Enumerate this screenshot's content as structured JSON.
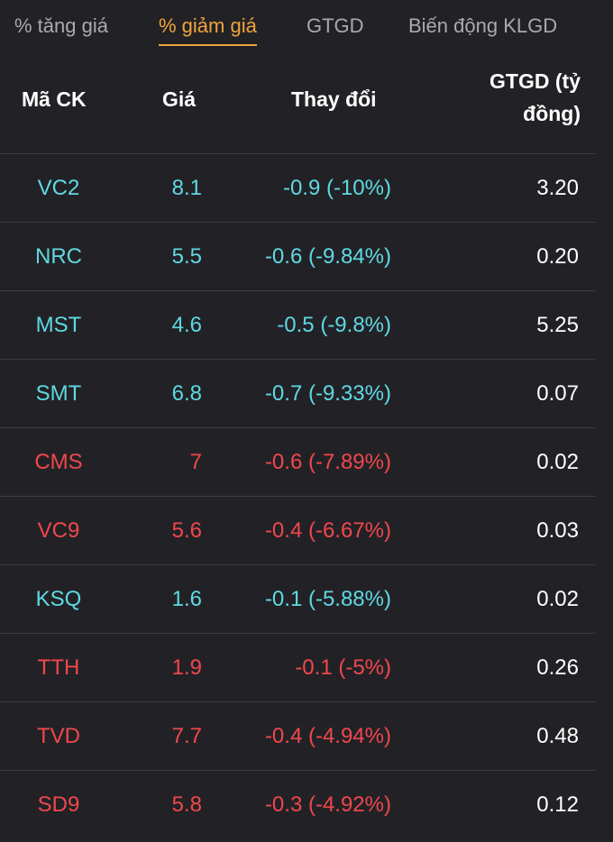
{
  "colors": {
    "floor": "#5fd9e3",
    "down": "#f0474d",
    "accent": "#f0a43a",
    "background": "#222226"
  },
  "tabs": [
    {
      "label": "% tăng giá",
      "active": false
    },
    {
      "label": "% giảm giá",
      "active": true
    },
    {
      "label": "GTGD",
      "active": false
    },
    {
      "label": "Biến động KLGD",
      "active": false
    }
  ],
  "headers": {
    "code": "Mã CK",
    "price": "Giá",
    "change": "Thay đổi",
    "value_line1": "GTGD (tỷ",
    "value_line2": "đồng)"
  },
  "rows": [
    {
      "code": "VC2",
      "price": "8.1",
      "change": "-0.9 (-10%)",
      "value": "3.20",
      "status": "floor"
    },
    {
      "code": "NRC",
      "price": "5.5",
      "change": "-0.6 (-9.84%)",
      "value": "0.20",
      "status": "floor"
    },
    {
      "code": "MST",
      "price": "4.6",
      "change": "-0.5 (-9.8%)",
      "value": "5.25",
      "status": "floor"
    },
    {
      "code": "SMT",
      "price": "6.8",
      "change": "-0.7 (-9.33%)",
      "value": "0.07",
      "status": "floor"
    },
    {
      "code": "CMS",
      "price": "7",
      "change": "-0.6 (-7.89%)",
      "value": "0.02",
      "status": "down"
    },
    {
      "code": "VC9",
      "price": "5.6",
      "change": "-0.4 (-6.67%)",
      "value": "0.03",
      "status": "down"
    },
    {
      "code": "KSQ",
      "price": "1.6",
      "change": "-0.1 (-5.88%)",
      "value": "0.02",
      "status": "floor"
    },
    {
      "code": "TTH",
      "price": "1.9",
      "change": "-0.1 (-5%)",
      "value": "0.26",
      "status": "down"
    },
    {
      "code": "TVD",
      "price": "7.7",
      "change": "-0.4 (-4.94%)",
      "value": "0.48",
      "status": "down"
    },
    {
      "code": "SD9",
      "price": "5.8",
      "change": "-0.3 (-4.92%)",
      "value": "0.12",
      "status": "down"
    }
  ]
}
